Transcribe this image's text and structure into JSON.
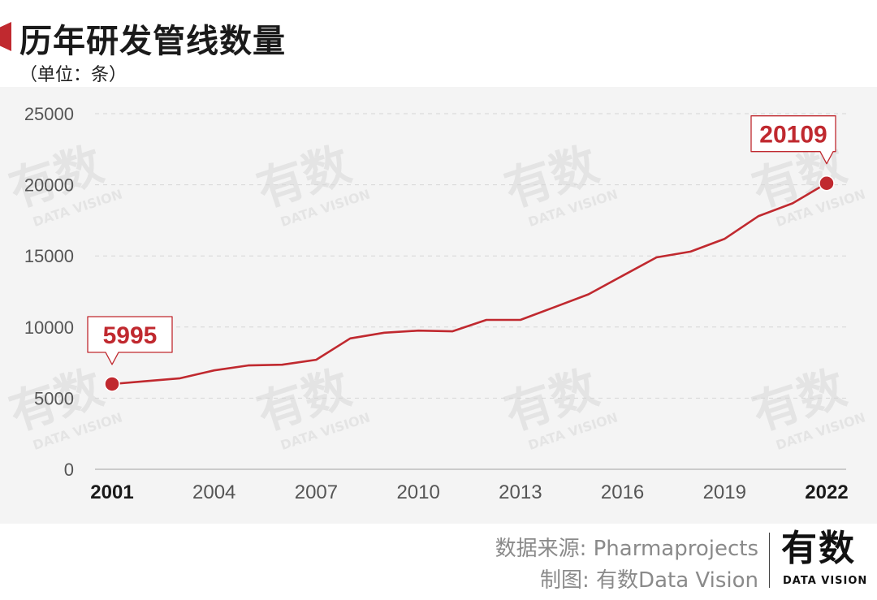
{
  "chart_data": {
    "type": "line",
    "title": "历年研发管线数量",
    "subtitle": "（单位：条）",
    "xlabel": "",
    "ylabel": "",
    "x": [
      2001,
      2002,
      2003,
      2004,
      2005,
      2006,
      2007,
      2008,
      2009,
      2010,
      2011,
      2012,
      2013,
      2014,
      2015,
      2016,
      2017,
      2018,
      2019,
      2020,
      2021,
      2022
    ],
    "series": [
      {
        "values": [
          5995,
          6200,
          6400,
          6950,
          7300,
          7350,
          7700,
          9200,
          9600,
          9750,
          9700,
          10500,
          10500,
          11400,
          12300,
          13600,
          14900,
          15300,
          16200,
          17800,
          18700,
          20109
        ]
      }
    ],
    "ylim": [
      0,
      25000
    ],
    "yticks": [
      0,
      5000,
      10000,
      15000,
      20000,
      25000
    ],
    "xtick_labels": [
      "2001",
      "2004",
      "2007",
      "2010",
      "2013",
      "2016",
      "2019",
      "2022"
    ],
    "annotations": [
      {
        "x": 2001,
        "y": 5995,
        "text": "5995"
      },
      {
        "x": 2022,
        "y": 20109,
        "text": "20109"
      }
    ],
    "grid": "horizontal dashed",
    "line_color": "#c0292f",
    "watermark_text": "有数",
    "watermark_text_en": "DATA VISION"
  },
  "source": {
    "data_source": "数据来源: Pharmaprojects",
    "made_by": "制图: 有数Data Vision"
  },
  "logo": {
    "cn": "有数",
    "en": "DATA VISION"
  }
}
